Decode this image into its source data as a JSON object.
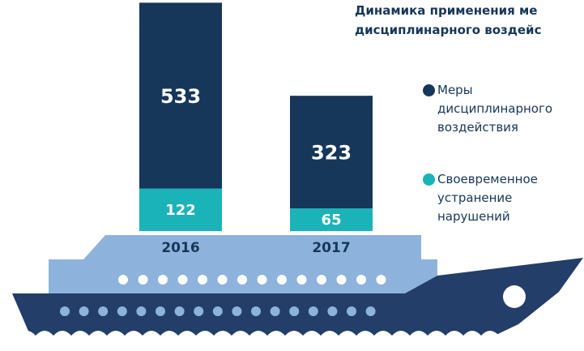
{
  "chart_data": {
    "type": "stacked-bar",
    "title_lines": [
      "Динамика применения ме",
      "дисциплинарного воздейс"
    ],
    "categories": [
      "2016",
      "2017"
    ],
    "series": [
      {
        "name": "Своевременное устранение нарушений",
        "color": "#1ab3b8",
        "values": [
          122,
          65
        ]
      },
      {
        "name": "Меры дисциплинарного воздействия",
        "color": "#16375a",
        "values": [
          533,
          323
        ]
      }
    ]
  }
}
